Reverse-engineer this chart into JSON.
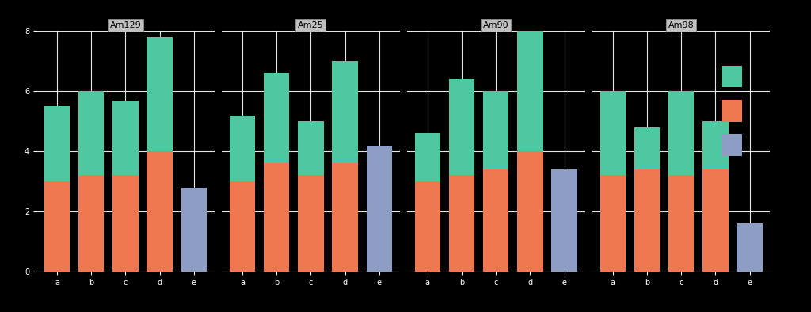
{
  "facets": [
    "Am129",
    "Am25",
    "Am90",
    "Am98"
  ],
  "x_labels": [
    "a",
    "b",
    "c",
    "d",
    "e"
  ],
  "colors": {
    "harvest1_top": "#4DC8A0",
    "harvest2_bottom": "#F07850",
    "control": "#8D9DC4"
  },
  "background_color": "#000000",
  "facet_title_bg": "#C0C0C0",
  "grid_color": "#FFFFFF",
  "bar_data": {
    "Am129": {
      "bottom": [
        3.0,
        3.2,
        3.2,
        4.0,
        0.0
      ],
      "top": [
        2.5,
        2.8,
        2.5,
        3.8,
        0.0
      ],
      "control": [
        0.0,
        0.0,
        0.0,
        0.0,
        2.8
      ]
    },
    "Am25": {
      "bottom": [
        3.0,
        3.6,
        3.2,
        3.6,
        0.0
      ],
      "top": [
        2.2,
        3.0,
        1.8,
        3.4,
        0.0
      ],
      "control": [
        0.0,
        0.0,
        0.0,
        0.0,
        4.2
      ]
    },
    "Am90": {
      "bottom": [
        3.0,
        3.2,
        3.4,
        4.0,
        0.0
      ],
      "top": [
        1.6,
        3.2,
        2.6,
        4.8,
        0.0
      ],
      "control": [
        0.0,
        0.0,
        0.0,
        0.0,
        3.4
      ]
    },
    "Am98": {
      "bottom": [
        3.2,
        3.4,
        3.2,
        3.4,
        0.0
      ],
      "top": [
        2.8,
        1.4,
        2.8,
        1.6,
        1.4
      ],
      "control": [
        0.0,
        0.0,
        0.0,
        0.0,
        1.6
      ]
    }
  },
  "ylim": [
    0,
    8
  ],
  "yticks": [
    0,
    2,
    4,
    6,
    8
  ],
  "legend_labels": [
    "",
    "",
    ""
  ]
}
